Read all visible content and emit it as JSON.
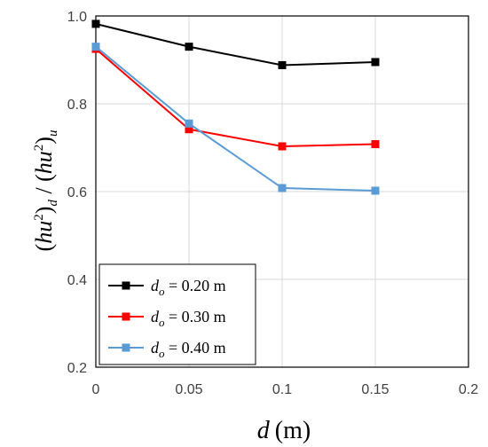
{
  "chart_data": {
    "type": "line",
    "xlabel": {
      "main": "d",
      "unit": "(m)"
    },
    "ylabel": "(hu²)d / (hu²)u",
    "xlim": [
      0,
      0.2
    ],
    "ylim": [
      0.2,
      1.0
    ],
    "xticks": [
      "0",
      "0.05",
      "0.1",
      "0.15",
      "0.2"
    ],
    "xtick_values": [
      0,
      0.05,
      0.1,
      0.15,
      0.2
    ],
    "yticks": [
      "0.2",
      "0.4",
      "0.6",
      "0.8",
      "1.0"
    ],
    "ytick_values": [
      0.2,
      0.4,
      0.6,
      0.8,
      1.0
    ],
    "grid": true,
    "legend_position": "bottom-left",
    "series": [
      {
        "name": "d_o = 0.20 m",
        "label_main": "d",
        "label_sub": "o",
        "label_rest": " = 0.20 m",
        "color": "#000000",
        "x": [
          0,
          0.05,
          0.1,
          0.15
        ],
        "y": [
          0.982,
          0.93,
          0.888,
          0.895
        ]
      },
      {
        "name": "d_o = 0.30 m",
        "label_main": "d",
        "label_sub": "o",
        "label_rest": " = 0.30 m",
        "color": "#ff0000",
        "x": [
          0,
          0.05,
          0.1,
          0.15
        ],
        "y": [
          0.925,
          0.742,
          0.703,
          0.708
        ]
      },
      {
        "name": "d_o = 0.40 m",
        "label_main": "d",
        "label_sub": "o",
        "label_rest": " = 0.40 m",
        "color": "#5b9bd5",
        "x": [
          0,
          0.05,
          0.1,
          0.15
        ],
        "y": [
          0.93,
          0.755,
          0.608,
          0.602
        ]
      }
    ]
  }
}
